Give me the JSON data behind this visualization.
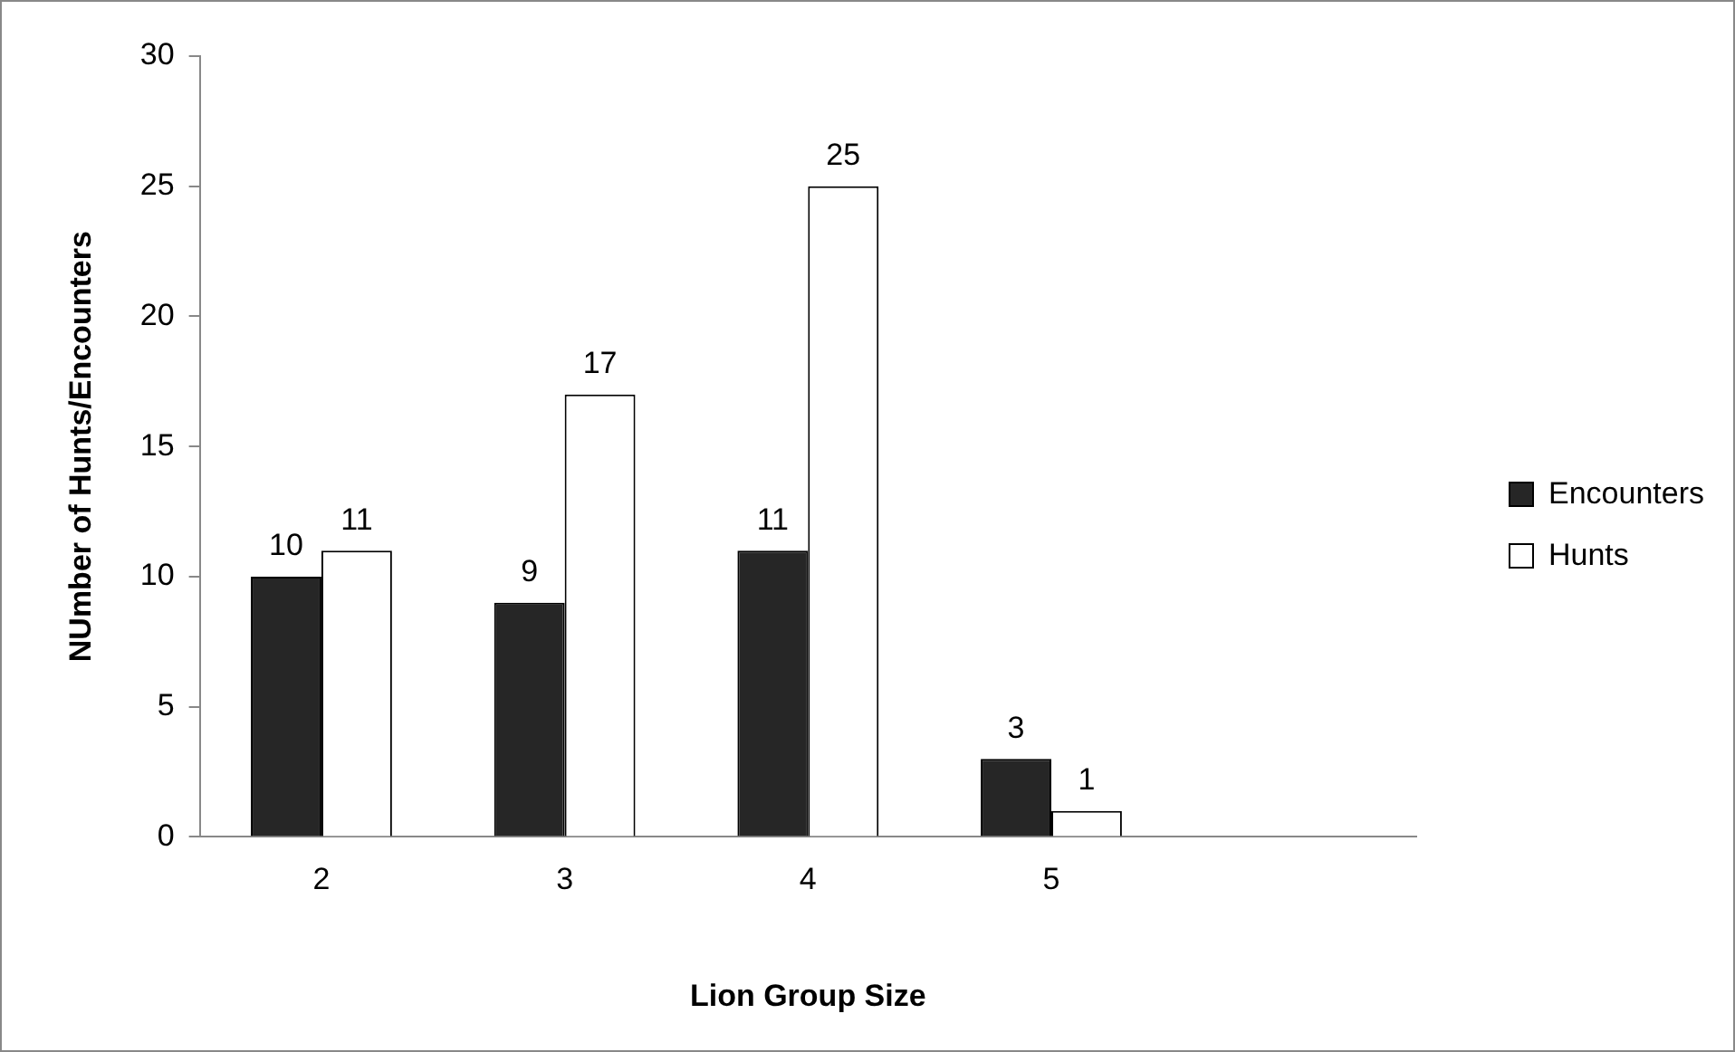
{
  "chart_data": {
    "type": "bar",
    "xlabel": "Lion Group Size",
    "ylabel": "NUmber of Hunts/Encounters",
    "categories": [
      "2",
      "3",
      "4",
      "5",
      null
    ],
    "series": [
      {
        "name": "Encounters",
        "color": "#262626",
        "values": [
          10,
          9,
          11,
          3,
          null
        ]
      },
      {
        "name": "Hunts",
        "color": "#ffffff",
        "values": [
          11,
          17,
          25,
          1,
          null
        ]
      }
    ],
    "ylim": [
      0,
      30
    ],
    "yticks": [
      0,
      5,
      10,
      15,
      20,
      25,
      30
    ],
    "grid": false,
    "legend": "right",
    "data_labels": true
  }
}
